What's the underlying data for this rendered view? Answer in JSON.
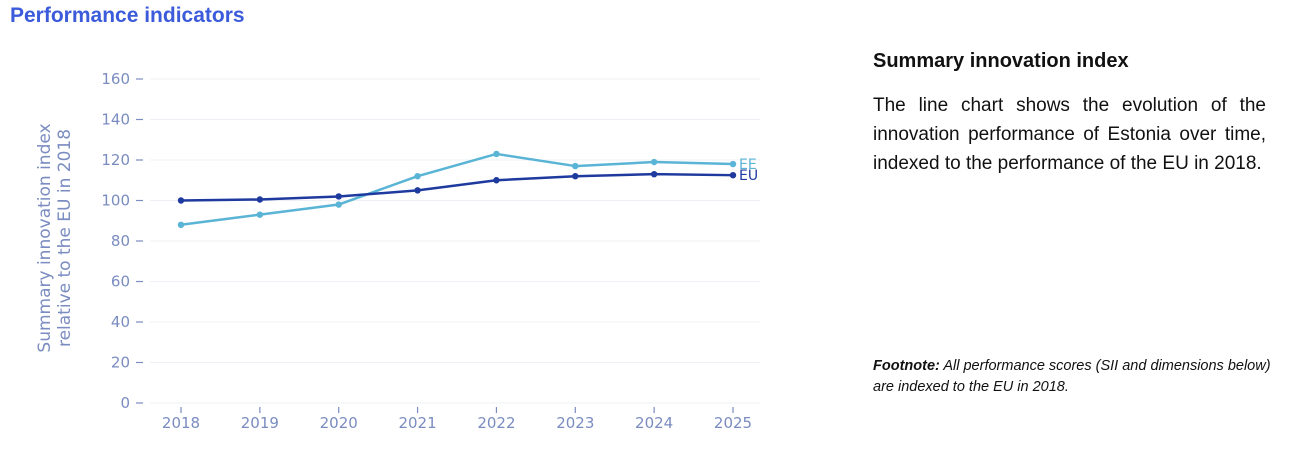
{
  "header": {
    "title": "Performance indicators"
  },
  "panel": {
    "title": "Summary innovation index",
    "body": "The line chart shows the evolution of the innovation performance of Estonia over time, indexed to the performance of the EU in 2018.",
    "footnote_label": "Footnote:",
    "footnote_text": "All performance scores (SII and dimensions below) are indexed to the EU in 2018."
  },
  "chart_data": {
    "type": "line",
    "ylabel_line1": "Summary innovation index",
    "ylabel_line2": "relative to the EU in 2018",
    "xlabel": "",
    "ylim": [
      0,
      160
    ],
    "yticks": [
      0,
      20,
      40,
      60,
      80,
      100,
      120,
      140,
      160
    ],
    "x": [
      "2018",
      "2019",
      "2020",
      "2021",
      "2022",
      "2023",
      "2024",
      "2025"
    ],
    "grid": true,
    "legend": "end-of-line labels",
    "series": [
      {
        "name": "EE",
        "color": "#5ab4d6",
        "values": [
          88,
          93,
          98,
          112,
          123,
          117,
          119,
          118
        ]
      },
      {
        "name": "EU",
        "color": "#1f3a9e",
        "values": [
          100,
          100.5,
          102,
          105,
          110,
          112,
          113,
          112.5
        ]
      }
    ]
  }
}
